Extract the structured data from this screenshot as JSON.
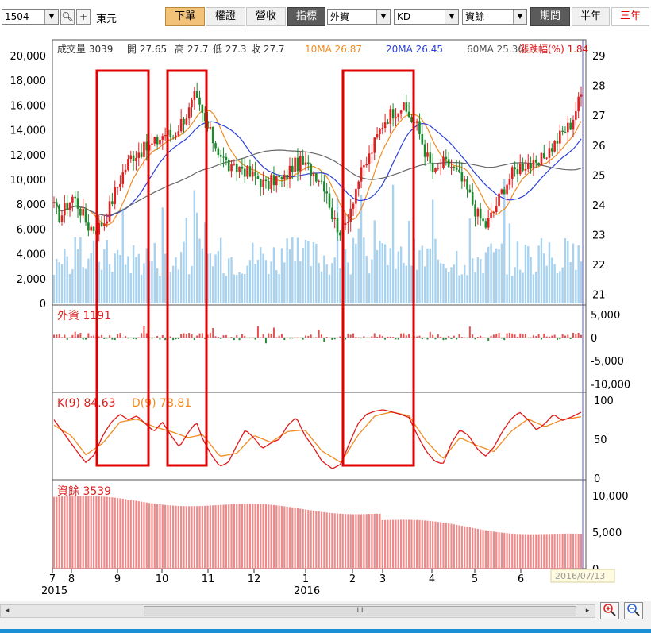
{
  "toolbar": {
    "stock_code": "1504",
    "search_icon": "magnifier-icon",
    "add_icon": "plus-icon",
    "stock_name": "東元",
    "tabs": [
      "下單",
      "權證",
      "營收"
    ],
    "indicator_label": "指標",
    "indicator_1": "外資",
    "indicator_2": "KD",
    "indicator_3": "資餘",
    "period_label": "期間",
    "period_half": "半年",
    "period_three": "三年",
    "colors": {
      "active_tab": "#f2c27a",
      "period_active": "#e00000",
      "label_bg": "#5b5b5b"
    }
  },
  "price_header": {
    "volume": "成交量 3039",
    "open": "開 27.65",
    "high": "高 27.7",
    "low": "低 27.3",
    "close": "收 27.7",
    "ma10": "10MA  26.87",
    "ma20": "20MA  26.45",
    "ma60": "60MA  25.36",
    "change": "漲跌幅(%) 1.84"
  },
  "panel_labels": {
    "foreign": "外資 1191",
    "kd_k": "K(9) 84.63",
    "kd_d": "D(9) 78.81",
    "margin": "資餘 3539"
  },
  "date_tooltip": "2016/07/13",
  "scrollbar": {
    "thumb_glyph": "III",
    "left_arrow": "◂",
    "right_arrow": "▸",
    "zoom_in_icon": "zoom-in-icon",
    "zoom_out_icon": "zoom-out-icon"
  },
  "chart_data": [
    {
      "type": "candlestick",
      "x_ticks": [
        "7",
        "8",
        "9",
        "10",
        "11",
        "12",
        "1",
        "2",
        "3",
        "4",
        "5",
        "6"
      ],
      "year_labels": [
        "2015",
        "2016"
      ],
      "price_axis": {
        "ticks": [
          "29",
          "28",
          "27",
          "26",
          "25",
          "24",
          "23",
          "22",
          "21"
        ],
        "ylim": [
          20.7,
          29
        ]
      },
      "volume_axis": {
        "ticks": [
          "20,000",
          "18,000",
          "16,000",
          "14,000",
          "12,000",
          "10,000",
          "8,000",
          "6,000",
          "4,000",
          "2,000",
          "0"
        ],
        "ylim": [
          0,
          20000
        ]
      },
      "close_path": [
        [
          0,
          23.9
        ],
        [
          6,
          23.6
        ],
        [
          12,
          24.0
        ],
        [
          18,
          24.3
        ],
        [
          24,
          23.9
        ],
        [
          32,
          23.3
        ],
        [
          40,
          23.2
        ],
        [
          48,
          23.5
        ],
        [
          56,
          24.3
        ],
        [
          64,
          25.0
        ],
        [
          72,
          25.6
        ],
        [
          80,
          25.8
        ],
        [
          88,
          25.9
        ],
        [
          96,
          26.1
        ],
        [
          104,
          26.4
        ],
        [
          112,
          26.3
        ],
        [
          120,
          26.8
        ],
        [
          128,
          27.2
        ],
        [
          132,
          27.6
        ],
        [
          136,
          27.3
        ],
        [
          144,
          26.6
        ],
        [
          152,
          26.0
        ],
        [
          160,
          25.5
        ],
        [
          168,
          25.1
        ],
        [
          176,
          25.3
        ],
        [
          184,
          25.0
        ],
        [
          192,
          24.9
        ],
        [
          200,
          24.6
        ],
        [
          208,
          24.9
        ],
        [
          216,
          24.8
        ],
        [
          224,
          25.3
        ],
        [
          232,
          25.4
        ],
        [
          240,
          25.2
        ],
        [
          248,
          25.0
        ],
        [
          256,
          24.6
        ],
        [
          262,
          23.6
        ],
        [
          268,
          23.2
        ],
        [
          272,
          23.1
        ],
        [
          278,
          23.8
        ],
        [
          286,
          24.8
        ],
        [
          294,
          25.4
        ],
        [
          302,
          26.1
        ],
        [
          310,
          26.8
        ],
        [
          318,
          27.1
        ],
        [
          326,
          27.3
        ],
        [
          334,
          27.0
        ],
        [
          342,
          26.6
        ],
        [
          350,
          25.7
        ],
        [
          358,
          25.0
        ],
        [
          366,
          25.4
        ],
        [
          374,
          25.3
        ],
        [
          382,
          24.9
        ],
        [
          390,
          24.4
        ],
        [
          398,
          23.7
        ],
        [
          406,
          23.3
        ],
        [
          414,
          23.8
        ],
        [
          422,
          24.5
        ],
        [
          430,
          25.0
        ],
        [
          438,
          25.3
        ],
        [
          446,
          25.4
        ],
        [
          454,
          25.2
        ],
        [
          462,
          25.7
        ],
        [
          470,
          26.0
        ],
        [
          478,
          26.4
        ],
        [
          486,
          26.7
        ],
        [
          496,
          27.7
        ]
      ],
      "ma10": [
        "26.87"
      ],
      "ma20": [
        "26.45"
      ],
      "ma60": [
        "25.36"
      ],
      "highlight_boxes": 3
    },
    {
      "type": "bar",
      "name": "外資",
      "axis_ticks": [
        "5,000",
        "0",
        "-5,000",
        "-10,000"
      ],
      "ylim": [
        -11500,
        6000
      ]
    },
    {
      "type": "line",
      "name": "KD",
      "axis_ticks": [
        "100",
        "50",
        "0"
      ],
      "ylim": [
        0,
        100
      ],
      "k_path": [
        [
          0,
          75
        ],
        [
          8,
          60
        ],
        [
          16,
          45
        ],
        [
          24,
          30
        ],
        [
          30,
          20
        ],
        [
          38,
          30
        ],
        [
          46,
          55
        ],
        [
          54,
          72
        ],
        [
          62,
          82
        ],
        [
          70,
          75
        ],
        [
          78,
          80
        ],
        [
          86,
          70
        ],
        [
          94,
          60
        ],
        [
          102,
          72
        ],
        [
          110,
          55
        ],
        [
          118,
          40
        ],
        [
          126,
          58
        ],
        [
          134,
          72
        ],
        [
          140,
          50
        ],
        [
          148,
          30
        ],
        [
          156,
          15
        ],
        [
          164,
          20
        ],
        [
          172,
          42
        ],
        [
          180,
          62
        ],
        [
          188,
          52
        ],
        [
          196,
          38
        ],
        [
          204,
          45
        ],
        [
          212,
          50
        ],
        [
          220,
          68
        ],
        [
          228,
          78
        ],
        [
          236,
          55
        ],
        [
          244,
          40
        ],
        [
          252,
          22
        ],
        [
          262,
          12
        ],
        [
          270,
          18
        ],
        [
          278,
          45
        ],
        [
          286,
          70
        ],
        [
          294,
          82
        ],
        [
          302,
          86
        ],
        [
          310,
          88
        ],
        [
          318,
          85
        ],
        [
          326,
          82
        ],
        [
          334,
          78
        ],
        [
          342,
          55
        ],
        [
          350,
          35
        ],
        [
          358,
          22
        ],
        [
          366,
          18
        ],
        [
          374,
          45
        ],
        [
          382,
          62
        ],
        [
          390,
          55
        ],
        [
          398,
          38
        ],
        [
          406,
          28
        ],
        [
          414,
          40
        ],
        [
          422,
          60
        ],
        [
          430,
          76
        ],
        [
          438,
          85
        ],
        [
          446,
          75
        ],
        [
          454,
          62
        ],
        [
          462,
          70
        ],
        [
          470,
          82
        ],
        [
          478,
          74
        ],
        [
          486,
          78
        ],
        [
          496,
          84.63
        ]
      ],
      "d_path": [
        [
          0,
          68
        ],
        [
          16,
          55
        ],
        [
          30,
          30
        ],
        [
          46,
          45
        ],
        [
          62,
          72
        ],
        [
          78,
          76
        ],
        [
          94,
          66
        ],
        [
          110,
          60
        ],
        [
          126,
          52
        ],
        [
          140,
          56
        ],
        [
          156,
          28
        ],
        [
          172,
          32
        ],
        [
          188,
          55
        ],
        [
          204,
          46
        ],
        [
          220,
          60
        ],
        [
          236,
          62
        ],
        [
          252,
          35
        ],
        [
          270,
          20
        ],
        [
          286,
          55
        ],
        [
          302,
          80
        ],
        [
          318,
          85
        ],
        [
          334,
          80
        ],
        [
          350,
          48
        ],
        [
          366,
          25
        ],
        [
          382,
          52
        ],
        [
          398,
          42
        ],
        [
          414,
          34
        ],
        [
          430,
          60
        ],
        [
          446,
          76
        ],
        [
          462,
          66
        ],
        [
          478,
          75
        ],
        [
          496,
          78.81
        ]
      ]
    },
    {
      "type": "bar",
      "name": "資餘",
      "axis_ticks": [
        "10,000",
        "5,000",
        "0"
      ],
      "ylim": [
        0,
        11500
      ]
    }
  ]
}
